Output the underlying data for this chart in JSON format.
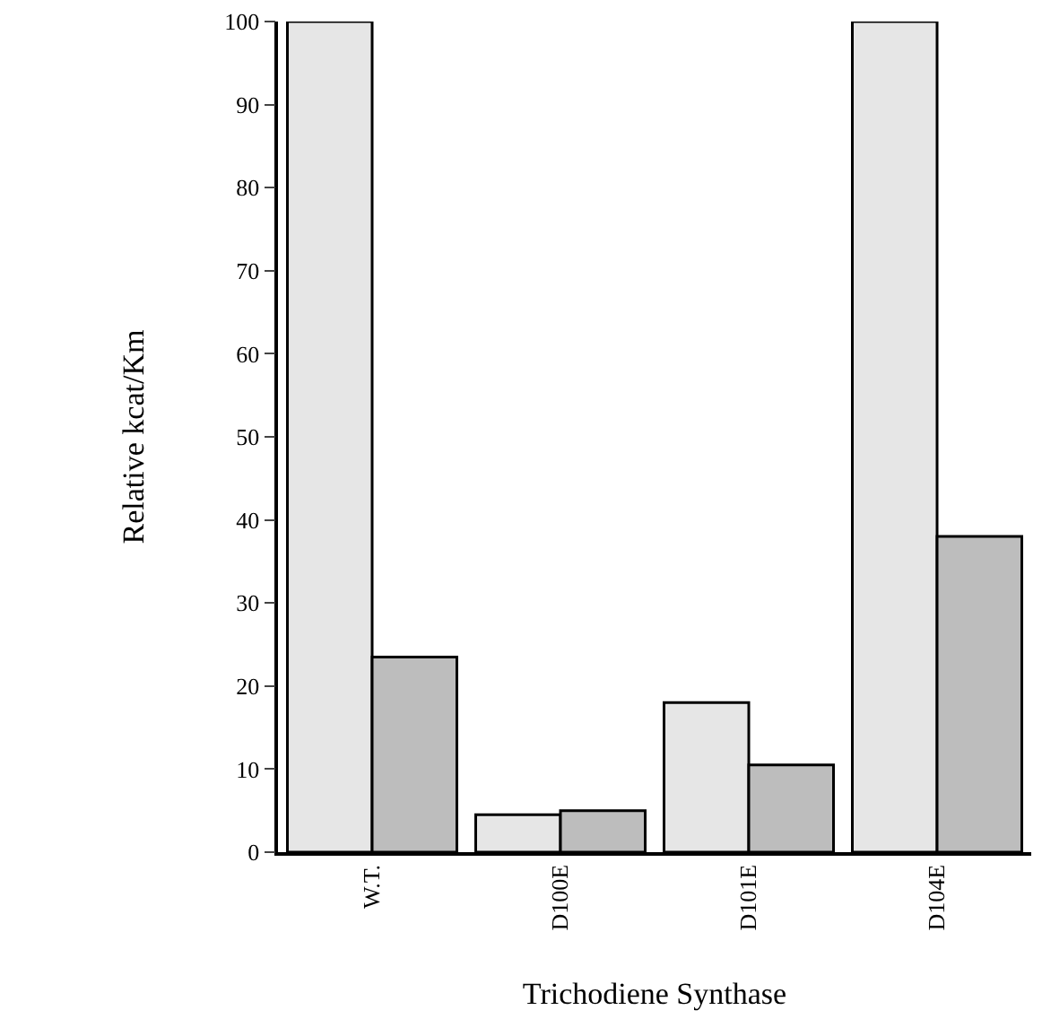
{
  "chart_data": {
    "type": "bar",
    "xlabel": "Trichodiene Synthase",
    "ylabel": "Relative kcat/Km",
    "categories": [
      "W.T.",
      "D100E",
      "D101E",
      "D104E"
    ],
    "series": [
      {
        "color": "#e6e6e6",
        "values": [
          100,
          4.5,
          18,
          100
        ]
      },
      {
        "color": "#bdbdbd",
        "values": [
          23.5,
          5,
          10.5,
          38
        ]
      }
    ],
    "ylim": [
      0,
      100
    ],
    "yticks": [
      0,
      10,
      20,
      30,
      40,
      50,
      60,
      70,
      80,
      90,
      100
    ]
  }
}
